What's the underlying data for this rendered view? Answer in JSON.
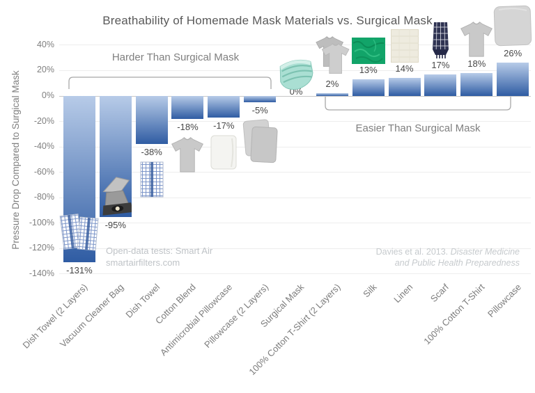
{
  "title": "Breathability of Homemade Mask Materials vs. Surgical Mask",
  "y_axis": {
    "label": "Pressure Drop Compared to Surgical Mask"
  },
  "annotations": {
    "harder": "Harder Than Surgical Mask",
    "easier": "Easier Than Surgical Mask"
  },
  "source_note": {
    "line1": "Open-data tests: Smart Air",
    "line2": "smartairfilters.com"
  },
  "citation": {
    "normal": "Davies et al. 2013.",
    "italic_line1": "Disaster Medicine",
    "italic_line2": "and Public Health Preparedness"
  },
  "colors": {
    "bar_top": "#b7cbe8",
    "bar_bottom": "#2f5ca3",
    "value_text": "#474747",
    "axis_text": "#7f7f7f",
    "muted_text": "#bfc3c7"
  },
  "chart_data": {
    "type": "bar",
    "title": "Breathability of Homemade Mask Materials vs. Surgical Mask",
    "xlabel": "",
    "ylabel": "Pressure Drop Compared to Surgical Mask",
    "ylim": [
      -140,
      40
    ],
    "y_ticks": [
      "40%",
      "20%",
      "0%",
      "-20%",
      "-40%",
      "-60%",
      "-80%",
      "-100%",
      "-120%",
      "-140%"
    ],
    "grid": true,
    "legend_position": "none",
    "categories": [
      "Dish Towel (2 Layers)",
      "Vacuum Cleaner Bag",
      "Dish Towel",
      "Cotton Blend",
      "Antimicrobial Pillowcase",
      "Pillowcase (2 Layers)",
      "Surgical Mask",
      "100% Cotton T-Shirt (2 Layers)",
      "Silk",
      "Linen",
      "Scarf",
      "100% Cotton T-Shirt",
      "Pillowcase"
    ],
    "values": [
      -131,
      -95,
      -38,
      -18,
      -17,
      -5,
      0,
      2,
      13,
      14,
      17,
      18,
      26
    ],
    "value_labels": [
      "-131%",
      "-95%",
      "-38%",
      "-18%",
      "-17%",
      "-5%",
      "0%",
      "2%",
      "13%",
      "14%",
      "17%",
      "18%",
      "26%"
    ],
    "icons": [
      "dish-towel-2-layers-icon",
      "vacuum-cleaner-bag-icon",
      "dish-towel-icon",
      "cotton-blend-tshirt-icon",
      "antimicrobial-pillowcase-icon",
      "pillowcase-2-layers-icon",
      "surgical-mask-icon",
      "cotton-tshirt-2-layers-icon",
      "silk-icon",
      "linen-icon",
      "scarf-icon",
      "cotton-tshirt-icon",
      "pillowcase-icon"
    ]
  }
}
